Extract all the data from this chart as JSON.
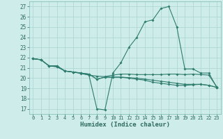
{
  "xlabel": "Humidex (Indice chaleur)",
  "ylabel": "",
  "bg_color": "#ceecea",
  "line_color": "#2e7d6e",
  "grid_color": "#aad4d0",
  "xlim": [
    -0.5,
    23.5
  ],
  "ylim": [
    16.5,
    27.5
  ],
  "yticks": [
    17,
    18,
    19,
    20,
    21,
    22,
    23,
    24,
    25,
    26,
    27
  ],
  "xticks": [
    0,
    1,
    2,
    3,
    4,
    5,
    6,
    7,
    8,
    9,
    10,
    11,
    12,
    13,
    14,
    15,
    16,
    17,
    18,
    19,
    20,
    21,
    22,
    23
  ],
  "series": {
    "line1_x": [
      0,
      1,
      2,
      3,
      4,
      5,
      6,
      7,
      8,
      9,
      10,
      11,
      12,
      13,
      14,
      15,
      16,
      17,
      18,
      19,
      20,
      21,
      22,
      23
    ],
    "line1_y": [
      21.9,
      21.8,
      21.2,
      21.2,
      20.7,
      20.6,
      20.5,
      20.4,
      19.9,
      20.1,
      20.1,
      20.1,
      20.0,
      19.9,
      19.8,
      19.6,
      19.5,
      19.4,
      19.3,
      19.3,
      19.35,
      19.4,
      19.3,
      19.1
    ],
    "line2_x": [
      0,
      1,
      2,
      3,
      4,
      5,
      6,
      7,
      8,
      9,
      10,
      11,
      12,
      13,
      14,
      15,
      16,
      17,
      18,
      19,
      20,
      21,
      22,
      23
    ],
    "line2_y": [
      21.9,
      21.8,
      21.2,
      21.2,
      20.7,
      20.6,
      20.5,
      20.4,
      19.9,
      20.1,
      20.1,
      20.1,
      20.05,
      20.0,
      19.9,
      19.8,
      19.7,
      19.6,
      19.5,
      19.4,
      19.4,
      19.4,
      19.3,
      19.1
    ],
    "line3_x": [
      0,
      1,
      2,
      3,
      4,
      5,
      6,
      7,
      8,
      9,
      10,
      11,
      12,
      13,
      14,
      15,
      16,
      17,
      18,
      19,
      20,
      21,
      22,
      23
    ],
    "line3_y": [
      21.9,
      21.8,
      21.2,
      21.15,
      20.7,
      20.6,
      20.5,
      20.3,
      17.0,
      16.9,
      20.5,
      21.5,
      23.0,
      24.0,
      25.5,
      25.7,
      26.8,
      27.0,
      25.0,
      20.9,
      20.9,
      20.5,
      20.5,
      19.1
    ],
    "line4_x": [
      0,
      1,
      2,
      3,
      4,
      5,
      6,
      7,
      8,
      9,
      10,
      11,
      12,
      13,
      14,
      15,
      16,
      17,
      18,
      19,
      20,
      21,
      22,
      23
    ],
    "line4_y": [
      21.9,
      21.8,
      21.2,
      21.1,
      20.7,
      20.6,
      20.45,
      20.3,
      20.2,
      20.15,
      20.3,
      20.4,
      20.4,
      20.35,
      20.35,
      20.35,
      20.35,
      20.4,
      20.4,
      20.35,
      20.4,
      20.35,
      20.3,
      19.15
    ]
  }
}
